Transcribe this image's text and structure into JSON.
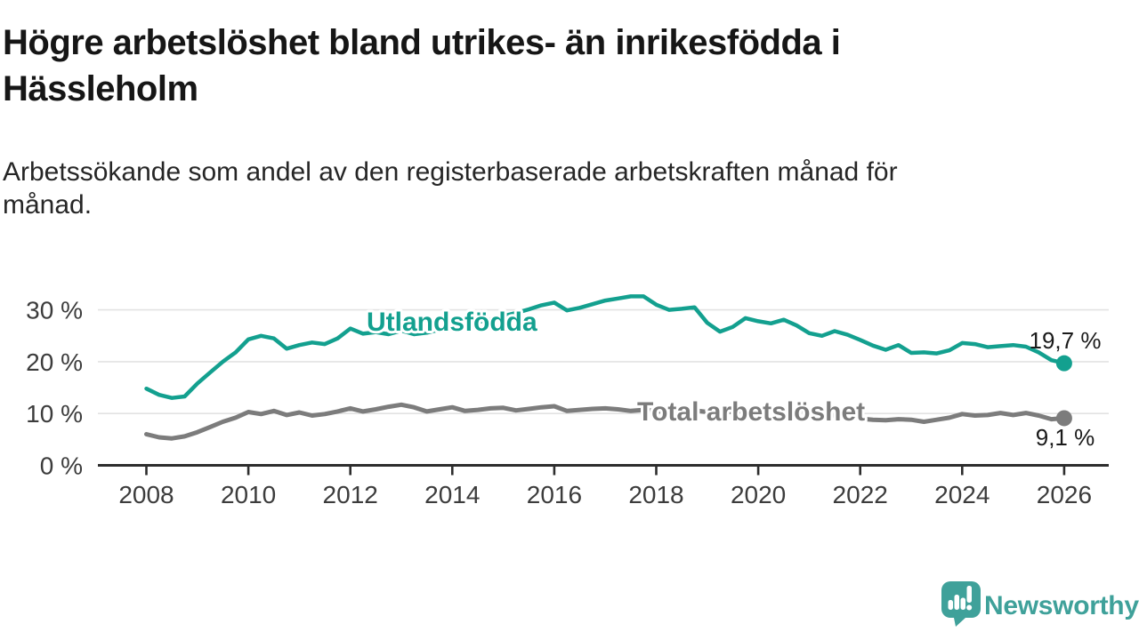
{
  "header": {
    "title": "Högre arbetslöshet bland utrikes- än inrikesfödda i Hässleholm",
    "title_lines": [
      "Högre arbetslöshet bland utrikes- än inrikesfödda i",
      "Hässleholm"
    ],
    "subtitle": "Arbetssökande som andel av den registerbaserade arbetskraften månad för månad.",
    "subtitle_lines": [
      "Arbetssökande som andel av den registerbaserade arbetskraften månad för",
      "månad."
    ]
  },
  "chart_data": {
    "type": "line",
    "title": "",
    "xlabel": "",
    "ylabel": "",
    "grid": true,
    "legend_position": "inline-labels",
    "x_start": 2008,
    "x_step": 0.25,
    "x_range": [
      2007.9,
      2026.9
    ],
    "ylim": [
      0,
      35
    ],
    "y_ticks": [
      0,
      10,
      20,
      30
    ],
    "y_tick_labels": [
      "0 %",
      "10 %",
      "20 %",
      "30 %"
    ],
    "x_ticks": [
      2008,
      2010,
      2012,
      2014,
      2016,
      2018,
      2020,
      2022,
      2024,
      2026
    ],
    "x_tick_labels": [
      "2008",
      "2010",
      "2012",
      "2014",
      "2016",
      "2018",
      "2020",
      "2022",
      "2024",
      "2026"
    ],
    "series": [
      {
        "name": "Utlandsfödda",
        "color": "#13A08F",
        "end_label": "19,7 %",
        "end_value": 19.7,
        "values": [
          14.8,
          13.6,
          13.0,
          13.3,
          15.8,
          17.9,
          20.0,
          21.8,
          24.3,
          25.0,
          24.5,
          22.5,
          23.2,
          23.7,
          23.4,
          24.5,
          26.4,
          25.4,
          25.7,
          25.3,
          26.0,
          25.3,
          25.6,
          26.2,
          26.5,
          27.0,
          27.6,
          28.2,
          28.8,
          29.4,
          30.1,
          30.9,
          31.4,
          29.9,
          30.4,
          31.1,
          31.8,
          32.2,
          32.6,
          32.6,
          31.0,
          30.0,
          30.2,
          30.5,
          27.5,
          25.8,
          26.7,
          28.4,
          27.8,
          27.4,
          28.1,
          27.0,
          25.5,
          25.0,
          25.9,
          25.2,
          24.2,
          23.1,
          22.3,
          23.2,
          21.7,
          21.8,
          21.6,
          22.2,
          23.6,
          23.4,
          22.8,
          23.0,
          23.2,
          22.9,
          21.8,
          20.3,
          19.7
        ]
      },
      {
        "name": "Total arbetslöshet",
        "color": "#7C7C7C",
        "end_label": "9,1 %",
        "end_value": 9.1,
        "values": [
          6.0,
          5.4,
          5.2,
          5.6,
          6.4,
          7.4,
          8.4,
          9.2,
          10.3,
          9.9,
          10.5,
          9.7,
          10.2,
          9.6,
          9.9,
          10.4,
          11.0,
          10.4,
          10.8,
          11.3,
          11.7,
          11.2,
          10.4,
          10.8,
          11.2,
          10.5,
          10.7,
          11.0,
          11.1,
          10.6,
          10.9,
          11.2,
          11.4,
          10.5,
          10.7,
          10.9,
          11.0,
          10.8,
          10.5,
          10.7,
          10.5,
          10.2,
          10.4,
          10.6,
          10.3,
          10.1,
          10.4,
          10.6,
          10.8,
          11.2,
          11.0,
          10.9,
          10.5,
          10.0,
          9.6,
          9.3,
          9.0,
          8.8,
          8.7,
          8.9,
          8.8,
          8.4,
          8.8,
          9.2,
          9.9,
          9.6,
          9.7,
          10.1,
          9.7,
          10.1,
          9.6,
          8.9,
          9.1
        ]
      }
    ]
  },
  "branding": {
    "logo_text": "Newsworthy",
    "logo_color": "#3FA19A",
    "logo_icon": "speech-bubble-bar-chart-exclamation"
  }
}
